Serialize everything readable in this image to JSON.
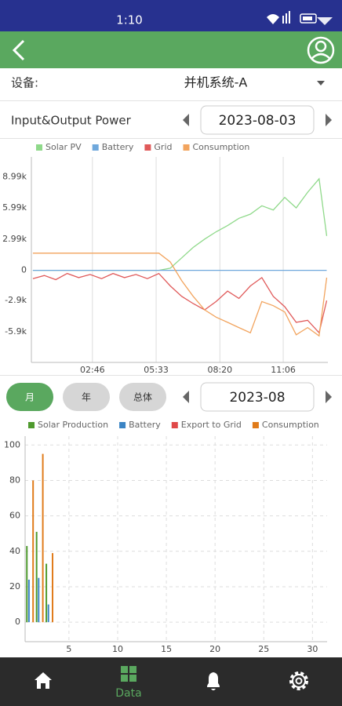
{
  "status_bar": {
    "time": "1:10"
  },
  "device_row": {
    "label": "设备:",
    "value": "并机系统-A"
  },
  "power_header": {
    "title": "Input&Output Power",
    "date": "2023-08-03"
  },
  "period_tabs": [
    "月",
    "年",
    "总体"
  ],
  "period_date": "2023-08",
  "bottom_nav": {
    "active_label": "Data"
  },
  "chart_data": [
    {
      "type": "line",
      "x": [
        10,
        40,
        70,
        100,
        130,
        160,
        190,
        220,
        250,
        280,
        310,
        340,
        370,
        400,
        430,
        460,
        490,
        520,
        550,
        580,
        610,
        640,
        670,
        700,
        730,
        760,
        780
      ],
      "xlim": [
        6,
        783
      ],
      "xticks": [
        {
          "value": 166,
          "label": "02:46"
        },
        {
          "value": 333,
          "label": "05:33"
        },
        {
          "value": 500,
          "label": "08:20"
        },
        {
          "value": 666,
          "label": "11:06"
        }
      ],
      "ylim": [
        -8850,
        10900
      ],
      "yticks": [
        {
          "value": 8990,
          "label": "8.99k"
        },
        {
          "value": 5990,
          "label": "5.99k"
        },
        {
          "value": 2990,
          "label": "2.99k"
        },
        0,
        {
          "value": -2900,
          "label": "-2.9k"
        },
        {
          "value": -5900,
          "label": "-5.9k"
        }
      ],
      "grid": "x",
      "series": [
        {
          "name": "Solar PV",
          "color": "#8fd98a",
          "values": [
            0,
            0,
            0,
            0,
            0,
            0,
            0,
            0,
            0,
            0,
            0,
            0,
            200,
            1200,
            2200,
            3000,
            3700,
            4300,
            5000,
            5400,
            6200,
            5800,
            7000,
            6000,
            7500,
            8800,
            3300
          ]
        },
        {
          "name": "Battery",
          "color": "#6fa8dc",
          "values": [
            0,
            0,
            0,
            0,
            0,
            0,
            0,
            0,
            0,
            0,
            0,
            0,
            0,
            0,
            0,
            0,
            0,
            0,
            0,
            0,
            0,
            0,
            0,
            0,
            0,
            0,
            0
          ]
        },
        {
          "name": "Grid",
          "color": "#e05a5a",
          "values": [
            -800,
            -500,
            -900,
            -300,
            -700,
            -400,
            -800,
            -300,
            -700,
            -400,
            -800,
            -300,
            -1500,
            -2500,
            -3200,
            -3800,
            -3000,
            -2000,
            -2700,
            -1500,
            -700,
            -2500,
            -3500,
            -5000,
            -4800,
            -6000,
            -2900
          ]
        },
        {
          "name": "Consumption",
          "color": "#f2a45e",
          "values": [
            1650,
            1650,
            1650,
            1650,
            1650,
            1650,
            1650,
            1650,
            1650,
            1650,
            1650,
            1650,
            800,
            -1000,
            -2500,
            -3800,
            -4500,
            -5000,
            -5500,
            -6000,
            -3000,
            -3400,
            -4000,
            -6200,
            -5500,
            -6300,
            -700
          ]
        }
      ]
    },
    {
      "type": "bar",
      "x": [
        1,
        2,
        3
      ],
      "xlim": [
        0.5,
        31.5
      ],
      "xticks": [
        5,
        10,
        15,
        20,
        25,
        30
      ],
      "ylim": [
        -11,
        105
      ],
      "yticks": [
        0,
        20,
        40,
        60,
        80,
        100
      ],
      "grid": "both",
      "series": [
        {
          "name": "Solar Production",
          "color": "#4f9a2e",
          "values": [
            43,
            51,
            33
          ]
        },
        {
          "name": "Battery",
          "color": "#3b84c4",
          "values": [
            24,
            25,
            10
          ]
        },
        {
          "name": "Export to Grid",
          "color": "#e04848",
          "values": [
            0,
            0,
            0
          ]
        },
        {
          "name": "Consumption",
          "color": "#e07b1a",
          "values": [
            80,
            95,
            39
          ]
        }
      ]
    }
  ]
}
